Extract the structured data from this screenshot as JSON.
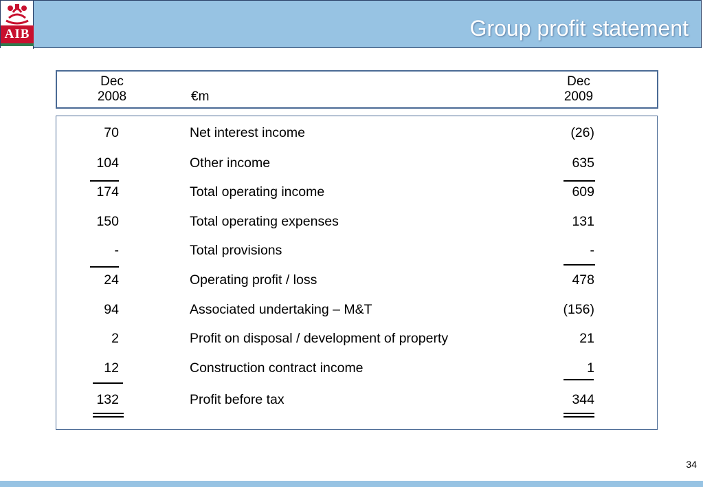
{
  "header": {
    "logo_text": "AIB",
    "title": "Group profit statement"
  },
  "columns": {
    "left": {
      "line1": "Dec",
      "line2": "2008"
    },
    "unit": "€m",
    "right": {
      "line1": "Dec",
      "line2": "2009"
    }
  },
  "rows": [
    {
      "y2008": "70",
      "label": "Net interest income",
      "y2009": "(26)"
    },
    {
      "y2008": "104",
      "label": "Other income",
      "y2009": "635"
    },
    {
      "y2008": "174",
      "label": "Total operating income",
      "y2009": "609"
    },
    {
      "y2008": "150",
      "label": "Total operating expenses",
      "y2009": "131"
    },
    {
      "y2008": "-",
      "label": "Total provisions",
      "y2009": "-"
    },
    {
      "y2008": "24",
      "label": "Operating profit / loss",
      "y2009": "478"
    },
    {
      "y2008": "94",
      "label": "Associated undertaking – M&T",
      "y2009": "(156)"
    },
    {
      "y2008": "2",
      "label": "Profit on disposal / development of property",
      "y2009": "21"
    },
    {
      "y2008": "12",
      "label": "Construction contract income",
      "y2009": "1"
    },
    {
      "y2008": "132",
      "label": "Profit before tax",
      "y2009": "344"
    }
  ],
  "page_number": "34",
  "colors": {
    "header_bg": "#97c3e3",
    "brand_red": "#c8102e",
    "border": "#4a6a95"
  }
}
